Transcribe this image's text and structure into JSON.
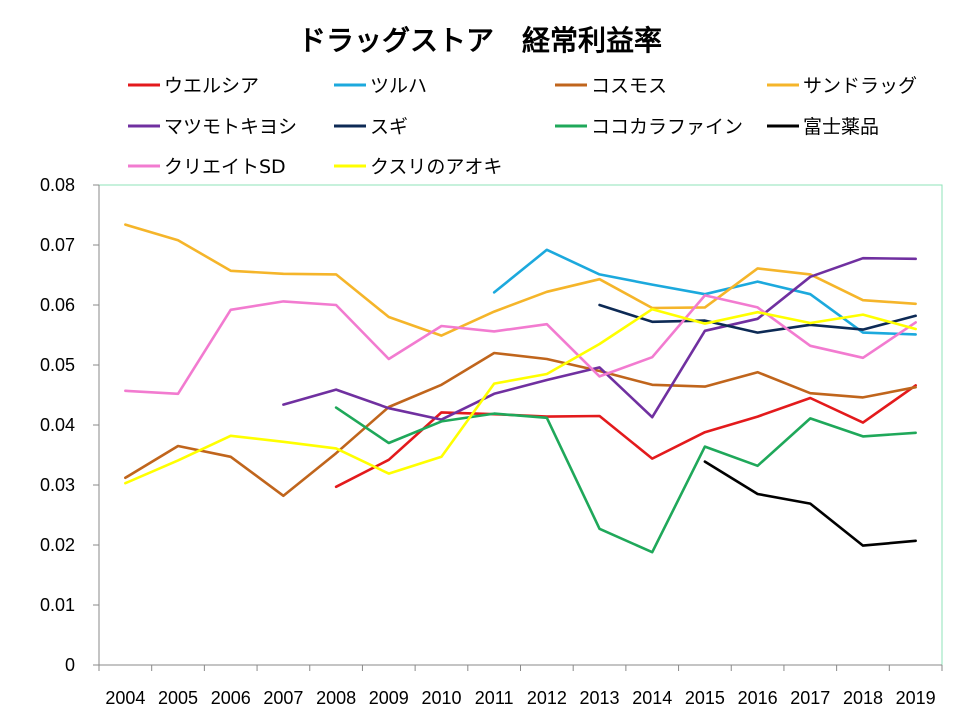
{
  "chart_data": {
    "type": "line",
    "title": "ドラッグストア　経常利益率",
    "xlabel": "",
    "ylabel": "",
    "x": [
      "2004",
      "2005",
      "2006",
      "2007",
      "2008",
      "2009",
      "2010",
      "2011",
      "2012",
      "2013",
      "2014",
      "2015",
      "2016",
      "2017",
      "2018",
      "2019"
    ],
    "ylim": [
      0,
      0.08
    ],
    "yticks": [
      "0",
      "0.01",
      "0.02",
      "0.03",
      "0.04",
      "0.05",
      "0.06",
      "0.07",
      "0.08"
    ],
    "grid": false,
    "legend_position": "top",
    "series": [
      {
        "name": "ウエルシア",
        "color": "#e31a1c",
        "values": [
          null,
          null,
          null,
          null,
          0.0297,
          0.0342,
          0.0421,
          0.0418,
          0.0414,
          0.0415,
          0.0344,
          0.0388,
          0.0414,
          0.0445,
          0.0404,
          0.0466
        ]
      },
      {
        "name": "ツルハ",
        "color": "#1ca9dd",
        "values": [
          null,
          null,
          null,
          null,
          null,
          null,
          null,
          0.0621,
          0.0692,
          0.0651,
          0.0634,
          0.0618,
          0.0639,
          0.0618,
          0.0554,
          0.0551
        ]
      },
      {
        "name": "コスモス",
        "color": "#c0651c",
        "values": [
          0.0312,
          0.0365,
          0.0347,
          0.0282,
          0.0353,
          0.043,
          0.0467,
          0.052,
          0.051,
          0.049,
          0.0467,
          0.0464,
          0.0488,
          0.0453,
          0.0446,
          0.0463
        ]
      },
      {
        "name": "サンドラッグ",
        "color": "#f5b52a",
        "values": [
          0.0734,
          0.0708,
          0.0657,
          0.0652,
          0.0651,
          0.058,
          0.0549,
          0.0589,
          0.0622,
          0.0643,
          0.0595,
          0.0596,
          0.0661,
          0.0651,
          0.0608,
          0.0602
        ]
      },
      {
        "name": "マツモトキヨシ",
        "color": "#7030a0",
        "values": [
          null,
          null,
          null,
          0.0434,
          0.0459,
          0.0428,
          0.0409,
          0.0452,
          0.0475,
          0.0496,
          0.0413,
          0.0557,
          0.0577,
          0.0647,
          0.0678,
          0.0677
        ]
      },
      {
        "name": "スギ",
        "color": "#0d2a55",
        "values": [
          null,
          null,
          null,
          null,
          null,
          null,
          null,
          null,
          null,
          0.06,
          0.0572,
          0.0574,
          0.0554,
          0.0567,
          0.0559,
          0.0582
        ]
      },
      {
        "name": "ココカラファイン",
        "color": "#1fa85a",
        "values": [
          null,
          null,
          null,
          null,
          0.0429,
          0.037,
          0.0406,
          0.0419,
          0.0412,
          0.0227,
          0.0188,
          0.0364,
          0.0332,
          0.0411,
          0.0381,
          0.0387
        ]
      },
      {
        "name": "富士薬品",
        "color": "#000000",
        "values": [
          null,
          null,
          null,
          null,
          null,
          null,
          null,
          null,
          null,
          null,
          null,
          0.0339,
          0.0285,
          0.0269,
          0.0199,
          0.0207
        ]
      },
      {
        "name": "クリエイトSD",
        "color": "#f27bd0",
        "values": [
          0.0457,
          0.0452,
          0.0592,
          0.0606,
          0.06,
          0.051,
          0.0565,
          0.0556,
          0.0568,
          0.0481,
          0.0513,
          0.0616,
          0.0596,
          0.0532,
          0.0512,
          0.0571
        ]
      },
      {
        "name": "クスリのアオキ",
        "color": "#ffff00",
        "values": [
          0.0303,
          0.0341,
          0.0382,
          0.0372,
          0.0361,
          0.0319,
          0.0347,
          0.0469,
          0.0485,
          0.0535,
          0.0593,
          0.0569,
          0.0588,
          0.057,
          0.0584,
          0.056
        ]
      }
    ]
  }
}
